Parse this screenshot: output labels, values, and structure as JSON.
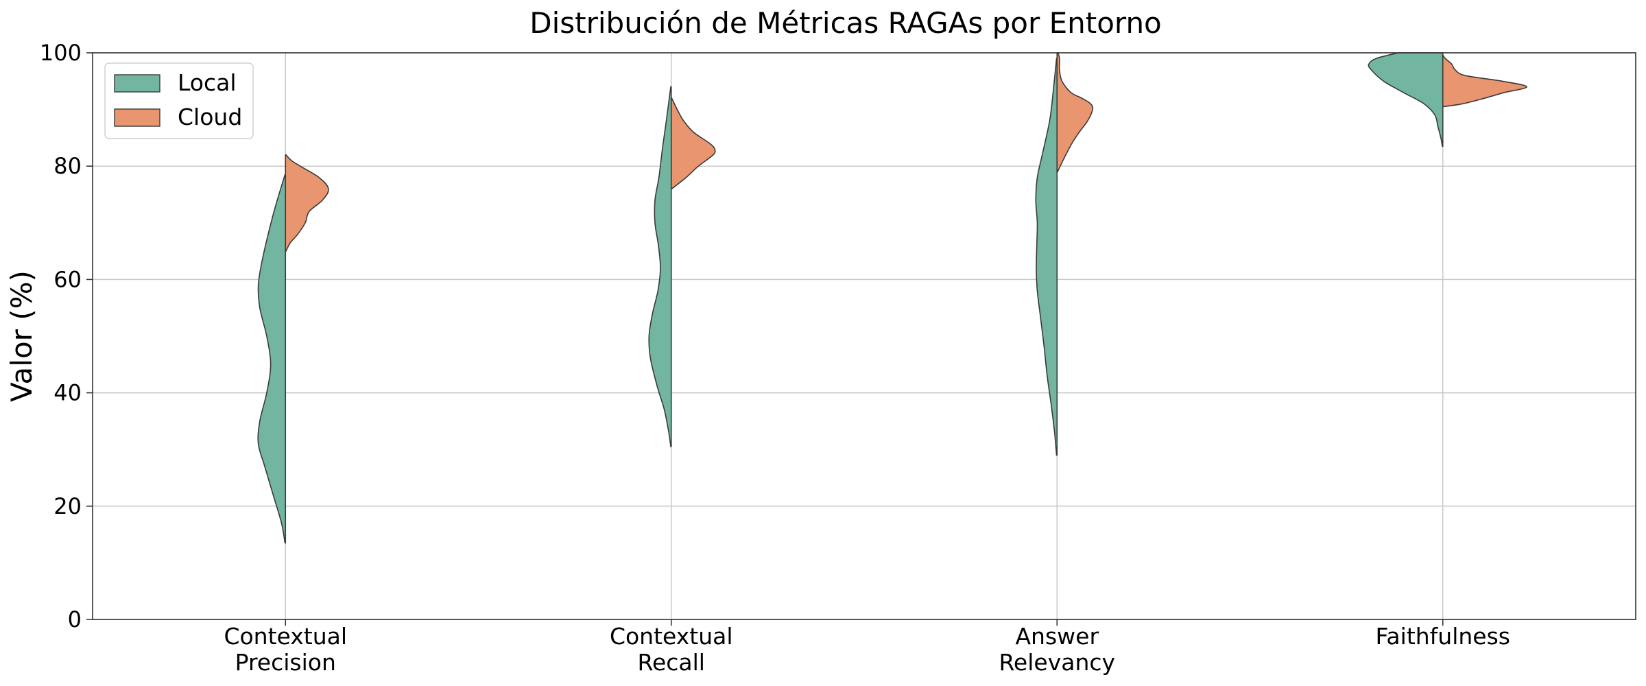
{
  "chart_data": {
    "type": "violin",
    "title": "Distribución de Métricas RAGAs por Entorno",
    "xlabel": "",
    "ylabel": "Valor (%)",
    "ylim": [
      0,
      100
    ],
    "yticks": [
      0,
      20,
      40,
      60,
      80,
      100
    ],
    "grid": true,
    "legend_position": "top-left",
    "categories": [
      [
        "Contextual",
        "Precision"
      ],
      [
        "Contextual",
        "Recall"
      ],
      [
        "Answer",
        "Relevancy"
      ],
      [
        "Faithfulness"
      ]
    ],
    "series": [
      {
        "name": "Local",
        "color": "#72b6a1",
        "side": "left",
        "distributions": [
          [
            [
              13.5,
              0.01
            ],
            [
              17,
              0.08
            ],
            [
              22,
              0.25
            ],
            [
              27,
              0.42
            ],
            [
              31,
              0.55
            ],
            [
              35,
              0.52
            ],
            [
              40,
              0.38
            ],
            [
              45,
              0.3
            ],
            [
              50,
              0.38
            ],
            [
              55,
              0.52
            ],
            [
              59,
              0.55
            ],
            [
              63,
              0.48
            ],
            [
              68,
              0.35
            ],
            [
              73,
              0.2
            ],
            [
              78.5,
              0.01
            ]
          ],
          [
            [
              30.5,
              0.01
            ],
            [
              33,
              0.05
            ],
            [
              37,
              0.14
            ],
            [
              41,
              0.28
            ],
            [
              46,
              0.42
            ],
            [
              50,
              0.45
            ],
            [
              54,
              0.38
            ],
            [
              58,
              0.27
            ],
            [
              62,
              0.22
            ],
            [
              66,
              0.26
            ],
            [
              70,
              0.33
            ],
            [
              74,
              0.33
            ],
            [
              78,
              0.25
            ],
            [
              83,
              0.18
            ],
            [
              88,
              0.1
            ],
            [
              94,
              0.01
            ]
          ],
          [
            [
              29,
              0.01
            ],
            [
              33,
              0.05
            ],
            [
              38,
              0.12
            ],
            [
              43,
              0.2
            ],
            [
              48,
              0.26
            ],
            [
              53,
              0.33
            ],
            [
              58,
              0.4
            ],
            [
              62,
              0.42
            ],
            [
              66,
              0.41
            ],
            [
              70,
              0.4
            ],
            [
              74,
              0.43
            ],
            [
              78,
              0.4
            ],
            [
              82,
              0.3
            ],
            [
              88,
              0.15
            ],
            [
              93,
              0.08
            ],
            [
              99,
              0.01
            ]
          ],
          [
            [
              83.5,
              0.01
            ],
            [
              85,
              0.04
            ],
            [
              87,
              0.1
            ],
            [
              89,
              0.16
            ],
            [
              91,
              0.38
            ],
            [
              93,
              0.8
            ],
            [
              95,
              1.2
            ],
            [
              97,
              1.45
            ],
            [
              98,
              1.5
            ],
            [
              99,
              1.35
            ],
            [
              100,
              0.9
            ]
          ]
        ]
      },
      {
        "name": "Cloud",
        "color": "#e9956f",
        "side": "right",
        "distributions": [
          [
            [
              65,
              0.01
            ],
            [
              66.5,
              0.1
            ],
            [
              68,
              0.25
            ],
            [
              70,
              0.4
            ],
            [
              72,
              0.48
            ],
            [
              74,
              0.75
            ],
            [
              76,
              0.87
            ],
            [
              78,
              0.68
            ],
            [
              80,
              0.3
            ],
            [
              81,
              0.12
            ],
            [
              82,
              0.01
            ]
          ],
          [
            [
              76,
              0.01
            ],
            [
              78,
              0.3
            ],
            [
              80,
              0.55
            ],
            [
              82,
              0.85
            ],
            [
              83,
              0.88
            ],
            [
              84,
              0.78
            ],
            [
              86,
              0.45
            ],
            [
              88,
              0.25
            ],
            [
              90,
              0.12
            ],
            [
              92,
              0.01
            ]
          ],
          [
            [
              79,
              0.01
            ],
            [
              81,
              0.12
            ],
            [
              84,
              0.3
            ],
            [
              86,
              0.45
            ],
            [
              88,
              0.62
            ],
            [
              90,
              0.72
            ],
            [
              91,
              0.68
            ],
            [
              92,
              0.5
            ],
            [
              93,
              0.28
            ],
            [
              95,
              0.1
            ],
            [
              97,
              0.05
            ],
            [
              99,
              0.05
            ],
            [
              100,
              0.02
            ]
          ],
          [
            [
              90.5,
              0.01
            ],
            [
              91,
              0.4
            ],
            [
              92,
              0.85
            ],
            [
              93,
              1.25
            ],
            [
              94,
              1.7
            ],
            [
              95,
              1.2
            ],
            [
              96,
              0.45
            ],
            [
              97,
              0.25
            ],
            [
              98,
              0.18
            ],
            [
              99,
              0.05
            ],
            [
              99.5,
              0.01
            ]
          ]
        ]
      }
    ]
  }
}
